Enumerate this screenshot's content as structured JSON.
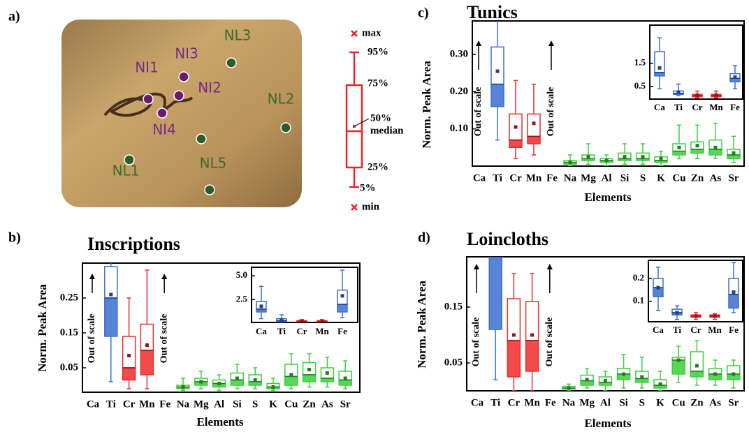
{
  "panel_labels": [
    "a)",
    "b)",
    "c)",
    "d)"
  ],
  "photo": {
    "labels": [
      "NL3",
      "NI3",
      "NI1",
      "NI2",
      "NL2",
      "NI4",
      "NL1",
      "NL5"
    ]
  },
  "legend": [
    "max",
    "95%",
    "75%",
    "50%",
    "median",
    "25%",
    "5%",
    "min"
  ],
  "chart_data": [
    {
      "type": "box",
      "title": "Inscriptions",
      "xlabel": "Elements",
      "ylabel": "Norm. Peak Area",
      "categories": [
        "Ca",
        "Ti",
        "Cr",
        "Mn",
        "Fe",
        "Na",
        "Mg",
        "Al",
        "Si",
        "S",
        "K",
        "Cu",
        "Zn",
        "As",
        "Sr"
      ],
      "colors": [
        "#3b6fd0",
        "#3b6fd0",
        "#ee2b2b",
        "#ee2b2b",
        "#3b6fd0",
        "#3ccf3c",
        "#3ccf3c",
        "#3ccf3c",
        "#3ccf3c",
        "#3ccf3c",
        "#3ccf3c",
        "#3ccf3c",
        "#3ccf3c",
        "#3ccf3c",
        "#3ccf3c"
      ],
      "ylim": [
        -0.02,
        0.35
      ],
      "yticks": [
        0.05,
        0.15,
        0.25
      ],
      "annotations": [
        "Out of scale",
        "Out of scale"
      ],
      "boxes": [
        null,
        {
          "low": 0.01,
          "q1": 0.14,
          "median": 0.25,
          "q3": 0.34,
          "high": 0.4,
          "mean": 0.26
        },
        {
          "low": -0.01,
          "q1": 0.015,
          "median": 0.05,
          "q3": 0.14,
          "high": 0.25,
          "mean": 0.085
        },
        {
          "low": -0.01,
          "q1": 0.03,
          "median": 0.1,
          "q3": 0.175,
          "high": 0.33,
          "mean": 0.115
        },
        null,
        {
          "low": -0.015,
          "q1": -0.01,
          "median": -0.005,
          "q3": 0.0,
          "high": 0.02,
          "mean": -0.005
        },
        {
          "low": -0.01,
          "q1": 0.0,
          "median": 0.01,
          "q3": 0.02,
          "high": 0.04,
          "mean": 0.01
        },
        {
          "low": -0.015,
          "q1": -0.005,
          "median": 0.005,
          "q3": 0.015,
          "high": 0.03,
          "mean": 0.005
        },
        {
          "low": -0.01,
          "q1": 0.0,
          "median": 0.015,
          "q3": 0.035,
          "high": 0.06,
          "mean": 0.02
        },
        {
          "low": -0.01,
          "q1": 0.0,
          "median": 0.01,
          "q3": 0.03,
          "high": 0.05,
          "mean": 0.015
        },
        {
          "low": -0.015,
          "q1": -0.01,
          "median": -0.005,
          "q3": 0.005,
          "high": 0.02,
          "mean": -0.005
        },
        {
          "low": -0.01,
          "q1": 0.0,
          "median": 0.025,
          "q3": 0.06,
          "high": 0.09,
          "mean": 0.03
        },
        {
          "low": -0.005,
          "q1": 0.01,
          "median": 0.03,
          "q3": 0.065,
          "high": 0.09,
          "mean": 0.045
        },
        {
          "low": -0.005,
          "q1": 0.01,
          "median": 0.02,
          "q3": 0.05,
          "high": 0.08,
          "mean": 0.035
        },
        {
          "low": -0.01,
          "q1": 0.0,
          "median": 0.015,
          "q3": 0.04,
          "high": 0.07,
          "mean": 0.02
        }
      ]
    },
    {
      "type": "box",
      "categories": [
        "Ca",
        "Ti",
        "Cr",
        "Mn",
        "Fe"
      ],
      "colors": [
        "#3b6fd0",
        "#3b6fd0",
        "#ee2b2b",
        "#ee2b2b",
        "#3b6fd0"
      ],
      "ylim": [
        0.1,
        5.9
      ],
      "yticks": [
        2.5,
        {
          "value": 5,
          "label": "5.0"
        }
      ],
      "boxes": [
        {
          "low": 0.5,
          "q1": 1.2,
          "median": 1.5,
          "q3": 2.3,
          "high": 3.9,
          "mean": 1.8
        },
        {
          "low": 0.15,
          "q1": 0.2,
          "median": 0.3,
          "q3": 0.5,
          "high": 0.9,
          "mean": 0.35
        },
        {
          "low": 0.12,
          "q1": 0.15,
          "median": 0.2,
          "q3": 0.3,
          "high": 0.4,
          "mean": 0.22
        },
        {
          "low": 0.12,
          "q1": 0.15,
          "median": 0.2,
          "q3": 0.3,
          "high": 0.4,
          "mean": 0.22
        },
        {
          "low": 0.6,
          "q1": 1.2,
          "median": 2.0,
          "q3": 3.5,
          "high": 5.6,
          "mean": 2.9
        }
      ]
    },
    {
      "type": "box",
      "title": "Tunics",
      "xlabel": "Elements",
      "ylabel": "Norm. Peak Area",
      "categories": [
        "Ca",
        "Ti",
        "Cr",
        "Mn",
        "Fe",
        "Na",
        "Mg",
        "Al",
        "Si",
        "S",
        "K",
        "Cu",
        "Zn",
        "As",
        "Sr"
      ],
      "colors": [
        "#3b6fd0",
        "#3b6fd0",
        "#ee2b2b",
        "#ee2b2b",
        "#3b6fd0",
        "#3ccf3c",
        "#3ccf3c",
        "#3ccf3c",
        "#3ccf3c",
        "#3ccf3c",
        "#3ccf3c",
        "#3ccf3c",
        "#3ccf3c",
        "#3ccf3c",
        "#3ccf3c"
      ],
      "ylim": [
        0,
        0.39
      ],
      "yticks": [
        {
          "value": 0.1,
          "label": "0.10"
        },
        {
          "value": 0.2,
          "label": "0.20"
        },
        {
          "value": 0.3,
          "label": "0.30"
        }
      ],
      "annotations": [
        "Out of scale",
        "Out of scale"
      ],
      "boxes": [
        null,
        {
          "low": 0.07,
          "q1": 0.16,
          "median": 0.22,
          "q3": 0.32,
          "high": 0.4,
          "mean": 0.255
        },
        {
          "low": 0.02,
          "q1": 0.05,
          "median": 0.07,
          "q3": 0.14,
          "high": 0.23,
          "mean": 0.105
        },
        {
          "low": 0.03,
          "q1": 0.06,
          "median": 0.08,
          "q3": 0.14,
          "high": 0.22,
          "mean": 0.115
        },
        null,
        {
          "low": 0.0,
          "q1": 0.005,
          "median": 0.01,
          "q3": 0.015,
          "high": 0.03,
          "mean": 0.01
        },
        {
          "low": 0.005,
          "q1": 0.015,
          "median": 0.02,
          "q3": 0.03,
          "high": 0.06,
          "mean": 0.025
        },
        {
          "low": 0.0,
          "q1": 0.01,
          "median": 0.015,
          "q3": 0.02,
          "high": 0.03,
          "mean": 0.015
        },
        {
          "low": 0.005,
          "q1": 0.015,
          "median": 0.02,
          "q3": 0.035,
          "high": 0.06,
          "mean": 0.025
        },
        {
          "low": 0.005,
          "q1": 0.015,
          "median": 0.02,
          "q3": 0.035,
          "high": 0.06,
          "mean": 0.025
        },
        {
          "low": 0.0,
          "q1": 0.01,
          "median": 0.015,
          "q3": 0.025,
          "high": 0.04,
          "mean": 0.02
        },
        {
          "low": 0.02,
          "q1": 0.03,
          "median": 0.04,
          "q3": 0.06,
          "high": 0.11,
          "mean": 0.05
        },
        {
          "low": 0.02,
          "q1": 0.035,
          "median": 0.045,
          "q3": 0.065,
          "high": 0.11,
          "mean": 0.055
        },
        {
          "low": 0.02,
          "q1": 0.03,
          "median": 0.045,
          "q3": 0.07,
          "high": 0.115,
          "mean": 0.05
        },
        {
          "low": 0.01,
          "q1": 0.02,
          "median": 0.03,
          "q3": 0.045,
          "high": 0.08,
          "mean": 0.035
        }
      ]
    },
    {
      "type": "box",
      "categories": [
        "Ca",
        "Ti",
        "Cr",
        "Mn",
        "Fe"
      ],
      "colors": [
        "#3b6fd0",
        "#3b6fd0",
        "#ee2b2b",
        "#ee2b2b",
        "#3b6fd0"
      ],
      "ylim": [
        -0.05,
        3.15
      ],
      "yticks": [
        0.5,
        1.5
      ],
      "boxes": [
        {
          "low": 0.4,
          "q1": 0.95,
          "median": 1.1,
          "q3": 2.0,
          "high": 2.6,
          "mean": 1.3
        },
        {
          "low": 0.1,
          "q1": 0.15,
          "median": 0.2,
          "q3": 0.3,
          "high": 0.6,
          "mean": 0.25
        },
        {
          "low": 0.0,
          "q1": 0.05,
          "median": 0.1,
          "q3": 0.15,
          "high": 0.3,
          "mean": 0.12
        },
        {
          "low": 0.0,
          "q1": 0.05,
          "median": 0.1,
          "q3": 0.15,
          "high": 0.3,
          "mean": 0.12
        },
        {
          "low": 0.4,
          "q1": 0.7,
          "median": 0.85,
          "q3": 1.05,
          "high": 1.4,
          "mean": 0.9
        }
      ]
    },
    {
      "type": "box",
      "title": "Loincloths",
      "xlabel": "Elements",
      "ylabel": "Norm. Peak Area",
      "categories": [
        "Ca",
        "Ti",
        "Cr",
        "Mn",
        "Fe",
        "Na",
        "Mg",
        "Al",
        "Si",
        "S",
        "K",
        "Cu",
        "Zn",
        "As",
        "Sr"
      ],
      "colors": [
        "#3b6fd0",
        "#3b6fd0",
        "#ee2b2b",
        "#ee2b2b",
        "#3b6fd0",
        "#3ccf3c",
        "#3ccf3c",
        "#3ccf3c",
        "#3ccf3c",
        "#3ccf3c",
        "#3ccf3c",
        "#3ccf3c",
        "#3ccf3c",
        "#3ccf3c",
        "#3ccf3c"
      ],
      "ylim": [
        0,
        0.24
      ],
      "yticks": [
        0.05,
        0.15
      ],
      "annotations": [
        "Out of scale",
        "Out of scale"
      ],
      "boxes": [
        null,
        {
          "low": 0.02,
          "q1": 0.11,
          "median": 0.28,
          "q3": 0.32,
          "high": 0.35,
          "mean": 0.28
        },
        {
          "low": 0.0,
          "q1": 0.025,
          "median": 0.09,
          "q3": 0.165,
          "high": 0.21,
          "mean": 0.1
        },
        {
          "low": 0.0,
          "q1": 0.035,
          "median": 0.09,
          "q3": 0.16,
          "high": 0.21,
          "mean": 0.1
        },
        null,
        {
          "low": 0.0,
          "q1": 0.003,
          "median": 0.005,
          "q3": 0.008,
          "high": 0.012,
          "mean": 0.005
        },
        {
          "low": 0.005,
          "q1": 0.01,
          "median": 0.018,
          "q3": 0.028,
          "high": 0.04,
          "mean": 0.02
        },
        {
          "low": 0.0,
          "q1": 0.01,
          "median": 0.015,
          "q3": 0.025,
          "high": 0.035,
          "mean": 0.018
        },
        {
          "low": 0.005,
          "q1": 0.02,
          "median": 0.03,
          "q3": 0.04,
          "high": 0.065,
          "mean": 0.03
        },
        {
          "low": 0.005,
          "q1": 0.015,
          "median": 0.022,
          "q3": 0.035,
          "high": 0.06,
          "mean": 0.025
        },
        {
          "low": 0.0,
          "q1": 0.005,
          "median": 0.01,
          "q3": 0.02,
          "high": 0.035,
          "mean": 0.012
        },
        {
          "low": 0.015,
          "q1": 0.03,
          "median": 0.055,
          "q3": 0.06,
          "high": 0.08,
          "mean": 0.055
        },
        {
          "low": 0.01,
          "q1": 0.025,
          "median": 0.035,
          "q3": 0.07,
          "high": 0.09,
          "mean": 0.045
        },
        {
          "low": 0.01,
          "q1": 0.02,
          "median": 0.03,
          "q3": 0.04,
          "high": 0.055,
          "mean": 0.03
        },
        {
          "low": 0.005,
          "q1": 0.02,
          "median": 0.03,
          "q3": 0.045,
          "high": 0.055,
          "mean": 0.03
        }
      ]
    },
    {
      "type": "box",
      "categories": [
        "Ca",
        "Ti",
        "Cr",
        "Mn",
        "Fe"
      ],
      "colors": [
        "#3b6fd0",
        "#3b6fd0",
        "#ee2b2b",
        "#ee2b2b",
        "#3b6fd0"
      ],
      "ylim": [
        0.01,
        0.28
      ],
      "yticks": [
        0.1,
        0.2
      ],
      "boxes": [
        {
          "low": 0.06,
          "q1": 0.12,
          "median": 0.16,
          "q3": 0.2,
          "high": 0.25,
          "mean": 0.16
        },
        {
          "low": 0.02,
          "q1": 0.04,
          "median": 0.05,
          "q3": 0.065,
          "high": 0.08,
          "mean": 0.05
        },
        {
          "low": 0.02,
          "q1": 0.03,
          "median": 0.035,
          "q3": 0.04,
          "high": 0.05,
          "mean": 0.035
        },
        {
          "low": 0.02,
          "q1": 0.03,
          "median": 0.035,
          "q3": 0.04,
          "high": 0.045,
          "mean": 0.035
        },
        {
          "low": 0.05,
          "q1": 0.07,
          "median": 0.13,
          "q3": 0.2,
          "high": 0.27,
          "mean": 0.14
        }
      ]
    }
  ]
}
